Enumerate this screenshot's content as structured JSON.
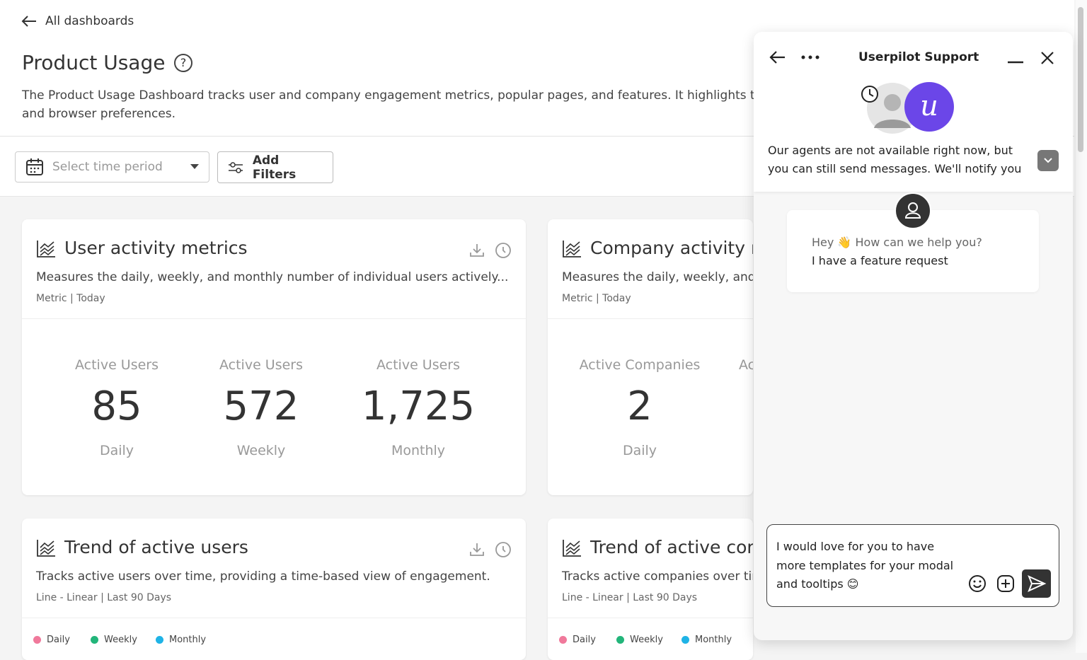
{
  "nav": {
    "back": "All dashboards"
  },
  "header": {
    "title": "Product Usage",
    "help": "?",
    "description_lines": [
      "The Product Usage Dashboard tracks user and company engagement metrics, popular pages, and features. It highlights trends",
      "and browser preferences."
    ]
  },
  "toolbar": {
    "time_placeholder": "Select time period",
    "filters": "Add Filters"
  },
  "cards": [
    {
      "title": "User activity metrics",
      "description": "Measures the daily, weekly, and monthly number of individual users actively...",
      "meta": "Metric | Today",
      "metrics": [
        {
          "label": "Active Users",
          "value": "85",
          "period": "Daily"
        },
        {
          "label": "Active Users",
          "value": "572",
          "period": "Weekly"
        },
        {
          "label": "Active Users",
          "value": "1,725",
          "period": "Monthly"
        }
      ]
    },
    {
      "title": "Company activity m",
      "description": "Measures the daily, weekly, and r",
      "meta": "Metric | Today",
      "metrics": [
        {
          "label": "Active Companies",
          "value": "2",
          "period": "Daily"
        },
        {
          "label": "Ac"
        }
      ]
    },
    {
      "title": "Trend of active users",
      "description": "Tracks active users over time, providing a time-based view of engagement.",
      "meta": "Line - Linear | Last 90 Days",
      "legend": [
        {
          "name": "Daily",
          "color": "#f0799b"
        },
        {
          "name": "Weekly",
          "color": "#22b57a"
        },
        {
          "name": "Monthly",
          "color": "#1fb3e6"
        }
      ]
    },
    {
      "title": "Trend of active com",
      "description": "Tracks active companies over tim",
      "meta": "Line - Linear | Last 90 Days",
      "legend": [
        {
          "name": "Daily",
          "color": "#f0799b"
        },
        {
          "name": "Weekly",
          "color": "#22b57a"
        },
        {
          "name": "Monthly",
          "color": "#1fb3e6"
        }
      ]
    }
  ],
  "chat": {
    "title": "Userpilot Support",
    "notice": "Our agents are not available right now, but you can still send messages. We'll notify you",
    "messages": [
      "Hey 👋 How can we help you?",
      "I have a feature request"
    ],
    "input": "I would love for you to have more templates for your modal and tooltips 😊"
  }
}
